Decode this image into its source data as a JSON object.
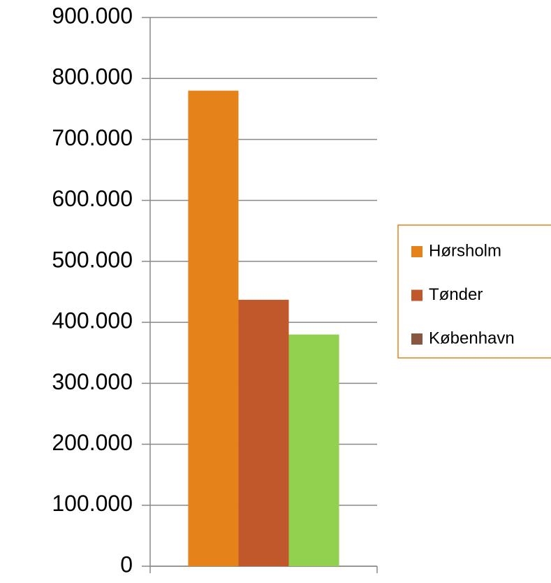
{
  "chart_data": {
    "type": "bar",
    "categories": [
      null
    ],
    "series": [
      {
        "name": "Hørsholm",
        "color": "#e6821a",
        "values": [
          780000
        ]
      },
      {
        "name": "Tønder",
        "color": "#c0582b",
        "values": [
          437000
        ]
      },
      {
        "name": "København",
        "color": "#92d050",
        "legend_color": "#8b5640",
        "values": [
          380000
        ]
      }
    ],
    "ylim": [
      0,
      900000
    ],
    "yticks": [
      0,
      {
        "value": 100000,
        "label": "100.000"
      },
      {
        "value": 200000,
        "label": "200.000"
      },
      {
        "value": 300000,
        "label": "300.000"
      },
      {
        "value": 400000,
        "label": "400.000"
      },
      {
        "value": 500000,
        "label": "500.000"
      },
      {
        "value": 600000,
        "label": "600.000"
      },
      {
        "value": 700000,
        "label": "700.000"
      },
      {
        "value": 800000,
        "label": "800.000"
      },
      {
        "value": 900000,
        "label": "900.000"
      }
    ],
    "grid": true,
    "legend": "right",
    "legend_border": "#e6821a"
  }
}
